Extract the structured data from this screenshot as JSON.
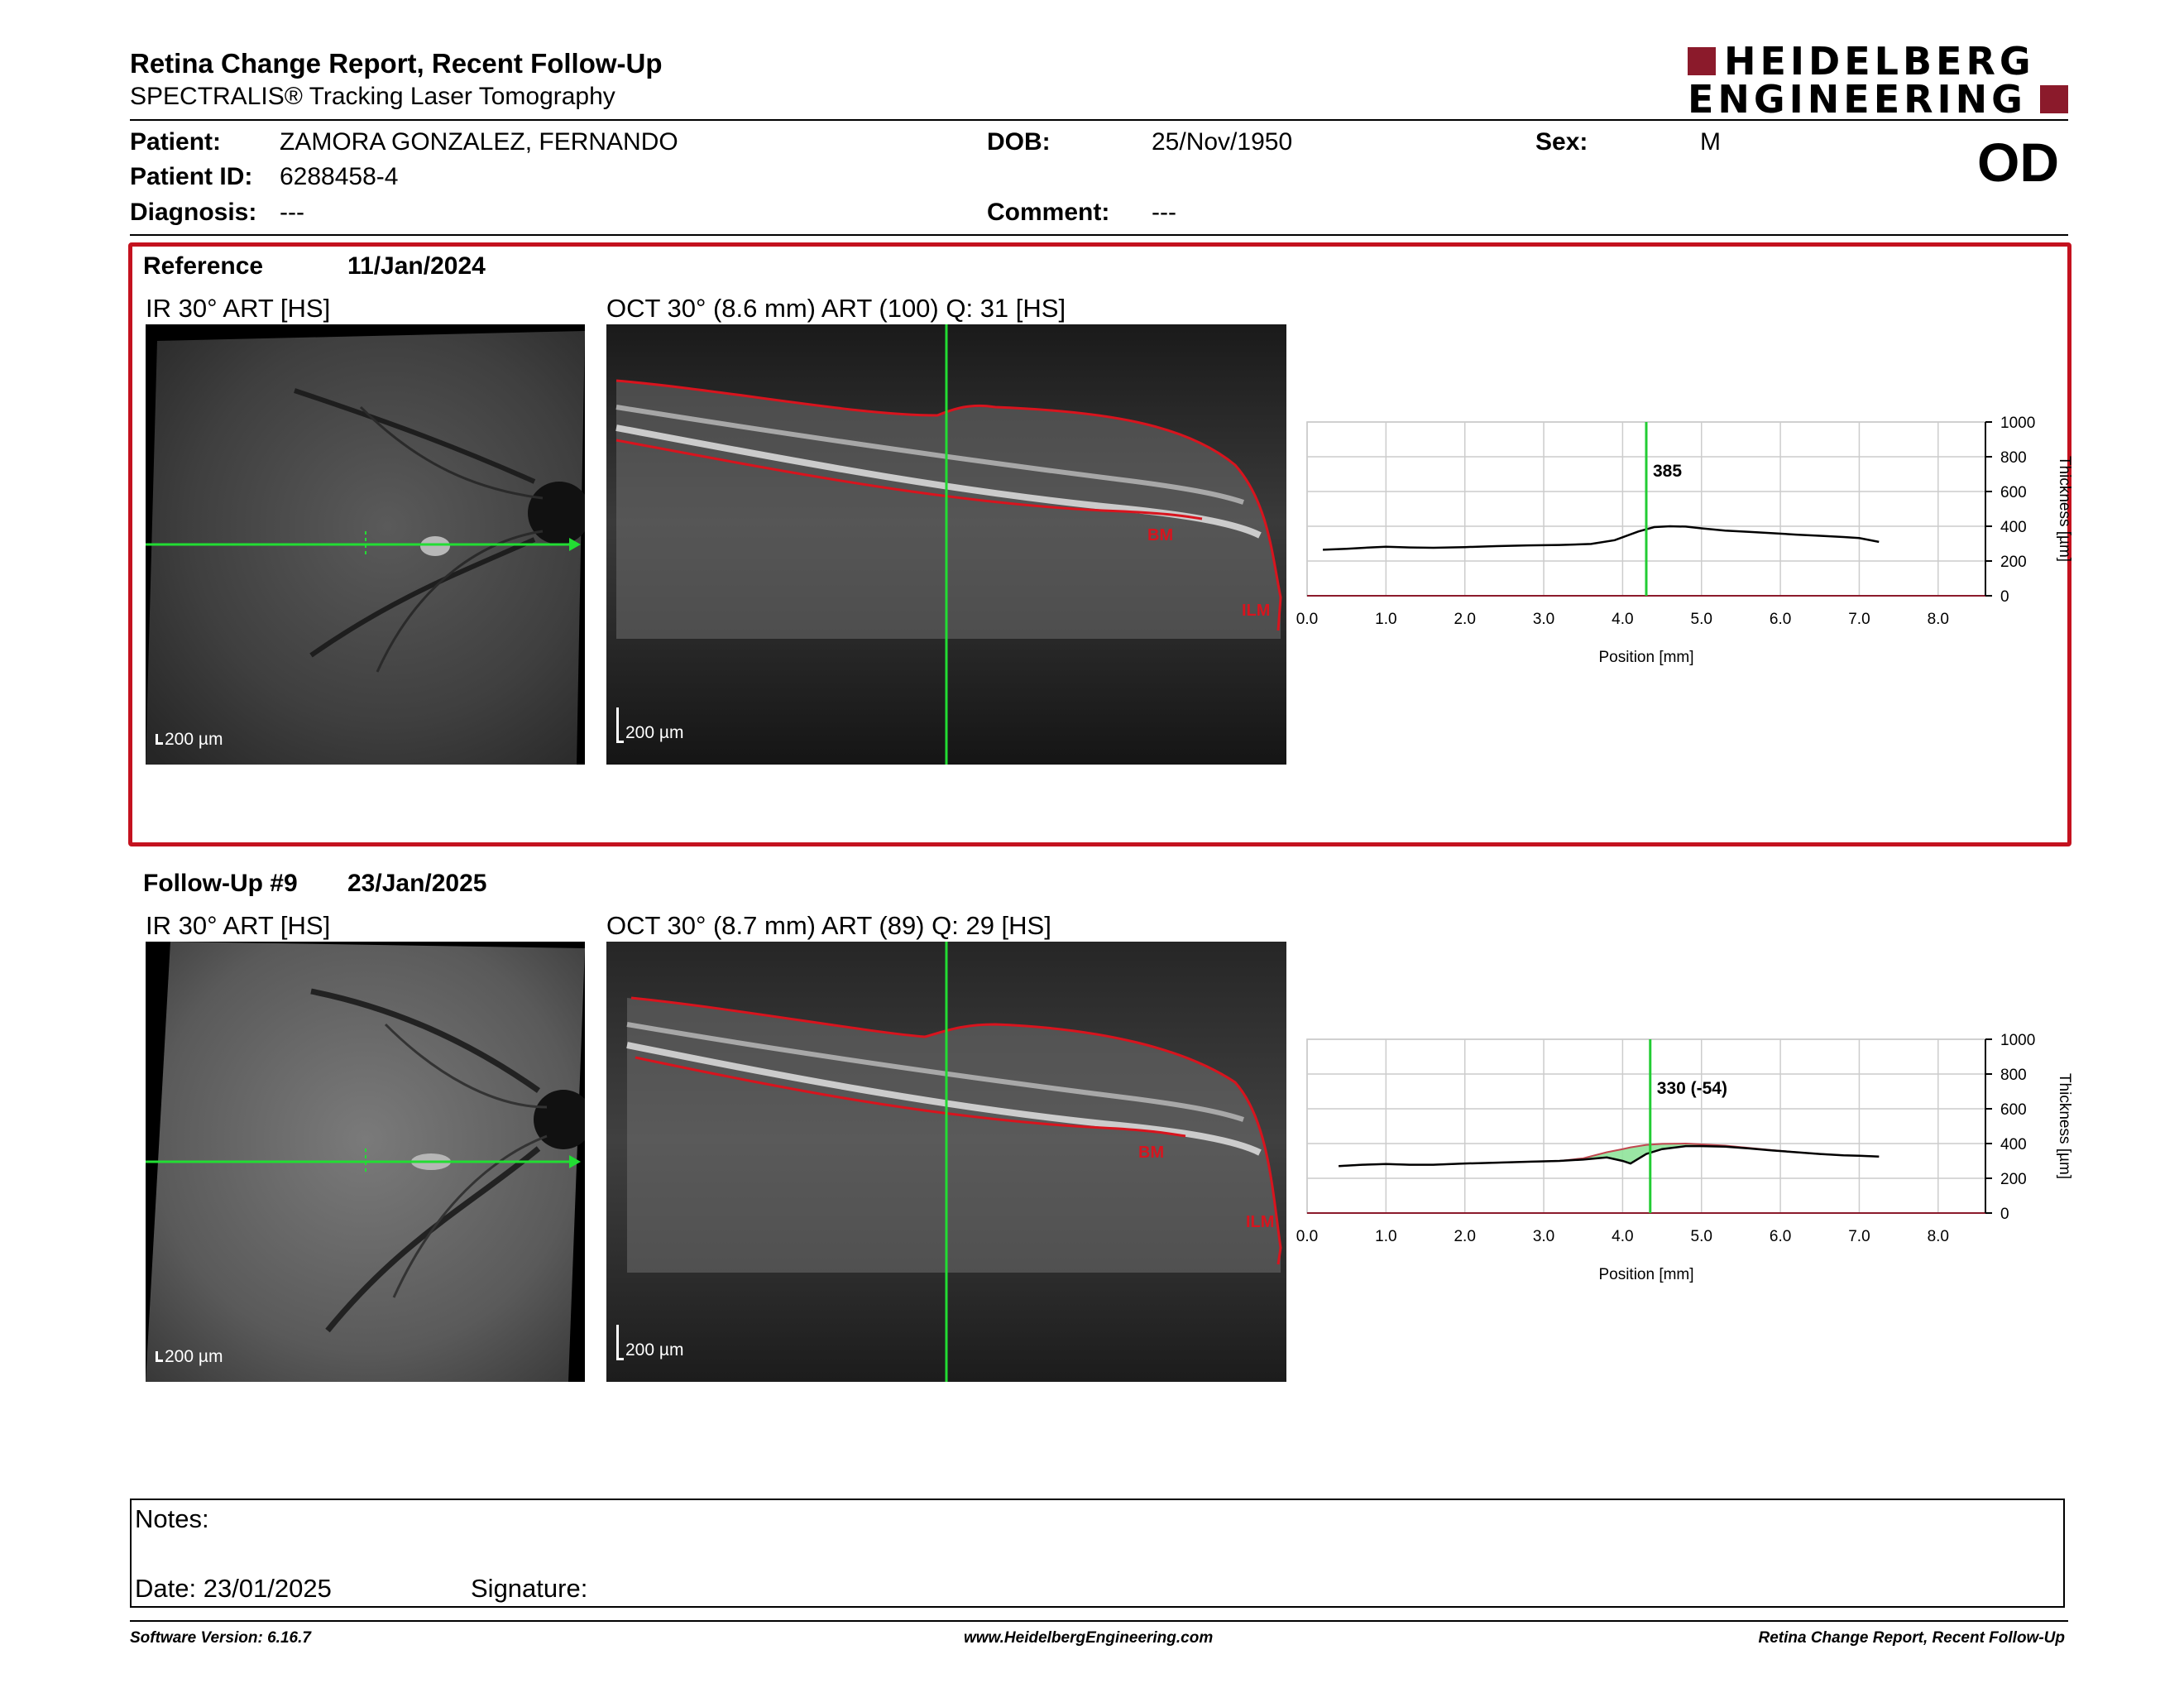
{
  "header": {
    "title": "Retina Change Report, Recent Follow-Up",
    "subtitle": "SPECTRALIS® Tracking Laser Tomography",
    "logo_line1": "HEIDELBERG",
    "logo_line2": "ENGINEERING",
    "brand_color": "#8b1a2b"
  },
  "patient": {
    "patient_label": "Patient:",
    "patient_value": "ZAMORA GONZALEZ, FERNANDO",
    "id_label": "Patient ID:",
    "id_value": "6288458-4",
    "diagnosis_label": "Diagnosis:",
    "diagnosis_value": "---",
    "dob_label": "DOB:",
    "dob_value": "25/Nov/1950",
    "comment_label": "Comment:",
    "comment_value": "---",
    "sex_label": "Sex:",
    "sex_value": "M",
    "eye": "OD"
  },
  "reference": {
    "label": "Reference",
    "date": "11/Jan/2024",
    "ir_caption": "IR 30° ART [HS]",
    "oct_caption": "OCT 30° (8.6 mm) ART (100) Q: 31 [HS]",
    "ir_scale": "200 µm",
    "oct_scale": "200 µm",
    "bm_label": "BM",
    "ilm_label": "ILM",
    "frame_color": "#c4121f"
  },
  "followup": {
    "label": "Follow-Up #9",
    "date": "23/Jan/2025",
    "ir_caption": "IR 30° ART [HS]",
    "oct_caption": "OCT 30° (8.7 mm) ART (89) Q: 29 [HS]",
    "ir_scale": "200 µm",
    "oct_scale": "200 µm",
    "bm_label": "BM",
    "ilm_label": "ILM"
  },
  "chart_data": [
    {
      "type": "line",
      "x": [
        0.2,
        0.5,
        0.8,
        1.0,
        1.3,
        1.6,
        2.0,
        2.4,
        2.8,
        3.2,
        3.6,
        3.9,
        4.2,
        4.4,
        4.6,
        4.8,
        5.0,
        5.3,
        5.6,
        5.9,
        6.2,
        6.5,
        6.8,
        7.0,
        7.25
      ],
      "series": [
        {
          "values": [
            265,
            270,
            278,
            282,
            278,
            276,
            280,
            286,
            290,
            292,
            298,
            320,
            370,
            395,
            400,
            398,
            388,
            375,
            368,
            360,
            352,
            345,
            338,
            332,
            310
          ]
        }
      ],
      "marker_x": 4.3,
      "marker_label": "385",
      "marker_color": "#22cc33",
      "xlabel": "Position [mm]",
      "ylabel": "Thickness [µm]",
      "xticks": [
        "0.0",
        "1.0",
        "2.0",
        "3.0",
        "4.0",
        "5.0",
        "6.0",
        "7.0",
        "8.0"
      ],
      "yticks": [
        "0",
        "200",
        "400",
        "600",
        "800",
        "1000"
      ],
      "xlim": [
        0,
        8.6
      ],
      "ylim": [
        0,
        1000
      ],
      "grid": true
    },
    {
      "type": "area",
      "x": [
        0.4,
        0.7,
        1.0,
        1.3,
        1.6,
        2.0,
        2.4,
        2.8,
        3.2,
        3.5,
        3.8,
        4.0,
        4.1,
        4.3,
        4.5,
        4.8,
        5.0,
        5.3,
        5.6,
        5.9,
        6.2,
        6.5,
        6.8,
        7.0,
        7.25
      ],
      "series": [
        {
          "values": [
            270,
            278,
            282,
            278,
            278,
            285,
            290,
            295,
            300,
            308,
            320,
            300,
            285,
            340,
            368,
            385,
            385,
            382,
            372,
            360,
            350,
            340,
            332,
            330,
            325
          ]
        },
        {
          "values": [
            270,
            278,
            282,
            278,
            278,
            285,
            290,
            295,
            300,
            315,
            350,
            368,
            378,
            392,
            398,
            400,
            395,
            388,
            375,
            362,
            350,
            340,
            332,
            330,
            325
          ]
        }
      ],
      "marker_x": 4.35,
      "marker_label": "330 (-54)",
      "marker_color": "#22cc33",
      "fill_color": "#8fe39a",
      "xlabel": "Position [mm]",
      "ylabel": "Thickness [µm]",
      "xticks": [
        "0.0",
        "1.0",
        "2.0",
        "3.0",
        "4.0",
        "5.0",
        "6.0",
        "7.0",
        "8.0"
      ],
      "yticks": [
        "0",
        "200",
        "400",
        "600",
        "800",
        "1000"
      ],
      "xlim": [
        0,
        8.6
      ],
      "ylim": [
        0,
        1000
      ],
      "grid": true
    }
  ],
  "notes": {
    "notes_label": "Notes:",
    "date_label": "Date: 23/01/2025",
    "signature_label": "Signature:"
  },
  "footer": {
    "left": "Software Version: 6.16.7",
    "center": "www.HeidelbergEngineering.com",
    "right": "Retina Change Report, Recent Follow-Up"
  }
}
